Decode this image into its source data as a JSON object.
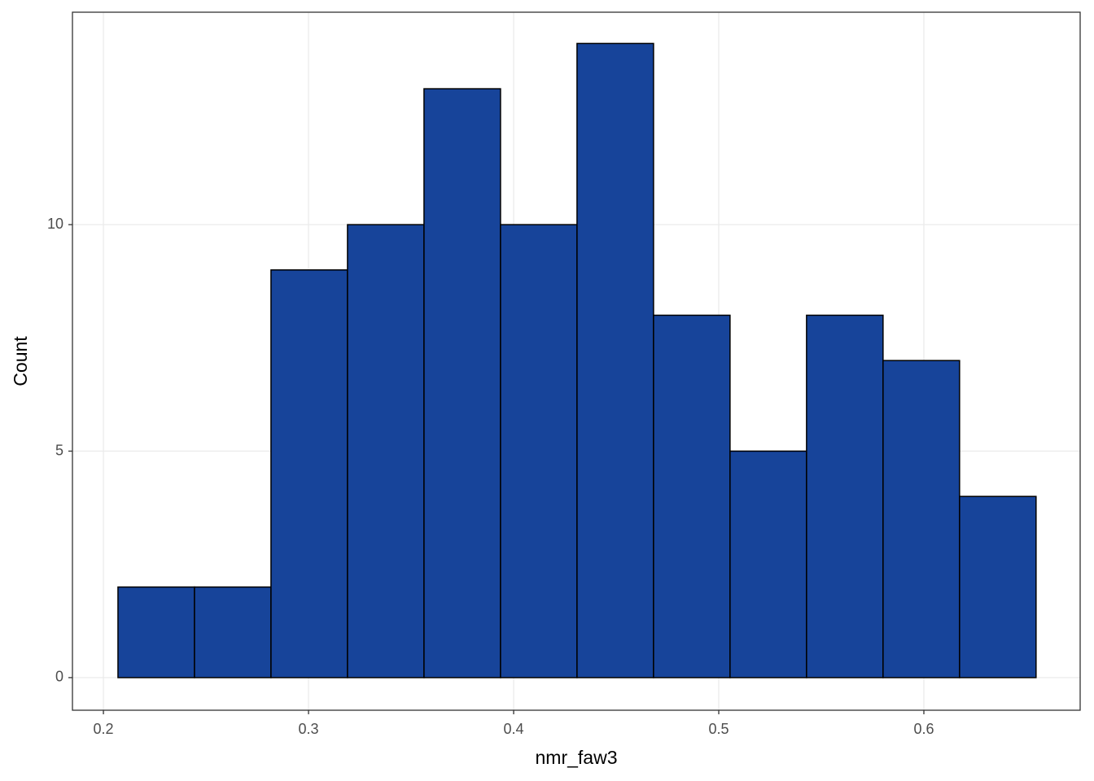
{
  "chart_data": {
    "type": "histogram",
    "xlabel": "nmr_faw3",
    "ylabel": "Count",
    "bins": [
      0.2071,
      0.2444,
      0.2817,
      0.319,
      0.3563,
      0.3936,
      0.4309,
      0.4682,
      0.5055,
      0.5428,
      0.5801,
      0.6174,
      0.6547
    ],
    "values": [
      2,
      2,
      9,
      10,
      13,
      10,
      14,
      8,
      5,
      8,
      7,
      4
    ],
    "color": "#17449a",
    "edgecolor": "#000000",
    "xlim": [
      0.1849,
      0.6762
    ],
    "xticks": [
      0.2,
      0.3,
      0.4,
      0.5,
      0.6
    ],
    "ylim": [
      -0.72,
      14.69
    ],
    "yticks": [
      0,
      5,
      10
    ],
    "grid": true
  }
}
